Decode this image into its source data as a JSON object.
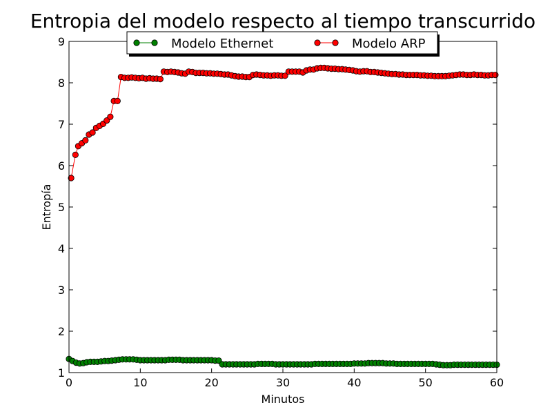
{
  "chart_data": {
    "type": "line",
    "title": "Entropia del modelo respecto al tiempo transcurrido",
    "xlabel": "Minutos",
    "ylabel": "Entropía",
    "xlim": [
      0,
      60
    ],
    "ylim": [
      1,
      9
    ],
    "xticks": [
      "0",
      "10",
      "20",
      "30",
      "40",
      "50",
      "60"
    ],
    "yticks": [
      "1",
      "2",
      "3",
      "4",
      "5",
      "6",
      "7",
      "8",
      "9"
    ],
    "grid": false,
    "legend_position": "top-center",
    "series": [
      {
        "name": "Modelo Ethernet",
        "color": "#008000",
        "marker_color": "#008000",
        "x": [
          0,
          0.5,
          1,
          1.5,
          2,
          2.5,
          3,
          3.5,
          4,
          4.5,
          5,
          5.5,
          6,
          6.5,
          7,
          7.5,
          8,
          8.5,
          9,
          9.5,
          10,
          10.5,
          11,
          11.5,
          12,
          12.5,
          13,
          13.5,
          14,
          14.5,
          15,
          15.5,
          16,
          16.5,
          17,
          17.5,
          18,
          18.5,
          19,
          19.5,
          20,
          20.5,
          21,
          21.5,
          22,
          22.5,
          23,
          23.5,
          24,
          24.5,
          25,
          25.5,
          26,
          26.5,
          27,
          27.5,
          28,
          28.5,
          29,
          29.5,
          30,
          30.5,
          31,
          31.5,
          32,
          32.5,
          33,
          33.5,
          34,
          34.5,
          35,
          35.5,
          36,
          36.5,
          37,
          37.5,
          38,
          38.5,
          39,
          39.5,
          40,
          40.5,
          41,
          41.5,
          42,
          42.5,
          43,
          43.5,
          44,
          44.5,
          45,
          45.5,
          46,
          46.5,
          47,
          47.5,
          48,
          48.5,
          49,
          49.5,
          50,
          50.5,
          51,
          51.5,
          52,
          52.5,
          53,
          53.5,
          54,
          54.5,
          55,
          55.5,
          56,
          56.5,
          57,
          57.5,
          58,
          58.5,
          59,
          59.5,
          60
        ],
        "values": [
          1.33,
          1.28,
          1.24,
          1.22,
          1.23,
          1.25,
          1.26,
          1.26,
          1.26,
          1.27,
          1.28,
          1.28,
          1.29,
          1.3,
          1.31,
          1.32,
          1.32,
          1.32,
          1.32,
          1.31,
          1.3,
          1.3,
          1.3,
          1.3,
          1.3,
          1.3,
          1.3,
          1.3,
          1.31,
          1.31,
          1.31,
          1.31,
          1.3,
          1.3,
          1.3,
          1.3,
          1.3,
          1.3,
          1.3,
          1.3,
          1.3,
          1.29,
          1.29,
          1.2,
          1.2,
          1.2,
          1.2,
          1.2,
          1.2,
          1.2,
          1.2,
          1.2,
          1.2,
          1.21,
          1.21,
          1.21,
          1.21,
          1.21,
          1.2,
          1.2,
          1.2,
          1.2,
          1.2,
          1.2,
          1.2,
          1.2,
          1.2,
          1.2,
          1.2,
          1.21,
          1.21,
          1.21,
          1.21,
          1.21,
          1.21,
          1.21,
          1.21,
          1.21,
          1.21,
          1.21,
          1.22,
          1.22,
          1.22,
          1.22,
          1.23,
          1.23,
          1.23,
          1.23,
          1.23,
          1.22,
          1.22,
          1.22,
          1.21,
          1.21,
          1.21,
          1.21,
          1.21,
          1.21,
          1.21,
          1.21,
          1.21,
          1.21,
          1.21,
          1.2,
          1.19,
          1.18,
          1.18,
          1.18,
          1.19,
          1.19,
          1.19,
          1.19,
          1.19,
          1.19,
          1.19,
          1.19,
          1.19,
          1.19,
          1.19,
          1.19,
          1.19
        ]
      },
      {
        "name": "Modelo ARP",
        "color": "#ff0000",
        "marker_color": "#ff0000",
        "x": [
          0.3,
          0.9,
          1.3,
          1.8,
          2.3,
          2.8,
          3.3,
          3.8,
          4.3,
          4.8,
          5.3,
          5.8,
          6.3,
          6.8,
          7.3,
          7.8,
          8.3,
          8.8,
          9.3,
          9.8,
          10.3,
          10.8,
          11.3,
          11.8,
          12.3,
          12.8,
          13.3,
          13.8,
          14.3,
          14.8,
          15.3,
          15.8,
          16.3,
          16.8,
          17.3,
          17.8,
          18.3,
          18.8,
          19.3,
          19.8,
          20.3,
          20.8,
          21.3,
          21.8,
          22.3,
          22.8,
          23.3,
          23.8,
          24.3,
          24.8,
          25.3,
          25.8,
          26.3,
          26.8,
          27.3,
          27.8,
          28.3,
          28.8,
          29.3,
          29.8,
          30.3,
          30.8,
          31.3,
          31.8,
          32.3,
          32.8,
          33.3,
          33.8,
          34.3,
          34.8,
          35.3,
          35.8,
          36.3,
          36.8,
          37.3,
          37.8,
          38.3,
          38.8,
          39.3,
          39.8,
          40.3,
          40.8,
          41.3,
          41.8,
          42.3,
          42.8,
          43.3,
          43.8,
          44.3,
          44.8,
          45.3,
          45.8,
          46.3,
          46.8,
          47.3,
          47.8,
          48.3,
          48.8,
          49.3,
          49.8,
          50.3,
          50.8,
          51.3,
          51.8,
          52.3,
          52.8,
          53.3,
          53.8,
          54.3,
          54.8,
          55.3,
          55.8,
          56.3,
          56.8,
          57.3,
          57.8,
          58.3,
          58.8,
          59.3,
          59.8
        ],
        "values": [
          5.7,
          6.26,
          6.47,
          6.54,
          6.61,
          6.75,
          6.8,
          6.91,
          6.96,
          7.01,
          7.09,
          7.18,
          7.56,
          7.56,
          8.14,
          8.12,
          8.12,
          8.13,
          8.12,
          8.11,
          8.12,
          8.1,
          8.11,
          8.1,
          8.1,
          8.09,
          8.27,
          8.26,
          8.27,
          8.26,
          8.25,
          8.23,
          8.22,
          8.27,
          8.26,
          8.24,
          8.24,
          8.24,
          8.23,
          8.23,
          8.22,
          8.22,
          8.21,
          8.2,
          8.2,
          8.18,
          8.16,
          8.15,
          8.15,
          8.14,
          8.14,
          8.19,
          8.2,
          8.19,
          8.18,
          8.18,
          8.17,
          8.18,
          8.18,
          8.17,
          8.17,
          8.27,
          8.27,
          8.27,
          8.27,
          8.25,
          8.3,
          8.32,
          8.32,
          8.35,
          8.36,
          8.36,
          8.35,
          8.34,
          8.34,
          8.33,
          8.33,
          8.32,
          8.31,
          8.3,
          8.28,
          8.27,
          8.28,
          8.28,
          8.26,
          8.26,
          8.25,
          8.24,
          8.23,
          8.22,
          8.21,
          8.21,
          8.2,
          8.2,
          8.19,
          8.19,
          8.19,
          8.19,
          8.18,
          8.18,
          8.17,
          8.17,
          8.16,
          8.16,
          8.16,
          8.16,
          8.17,
          8.18,
          8.19,
          8.2,
          8.2,
          8.19,
          8.19,
          8.2,
          8.19,
          8.19,
          8.18,
          8.18,
          8.19,
          8.19
        ]
      }
    ]
  }
}
